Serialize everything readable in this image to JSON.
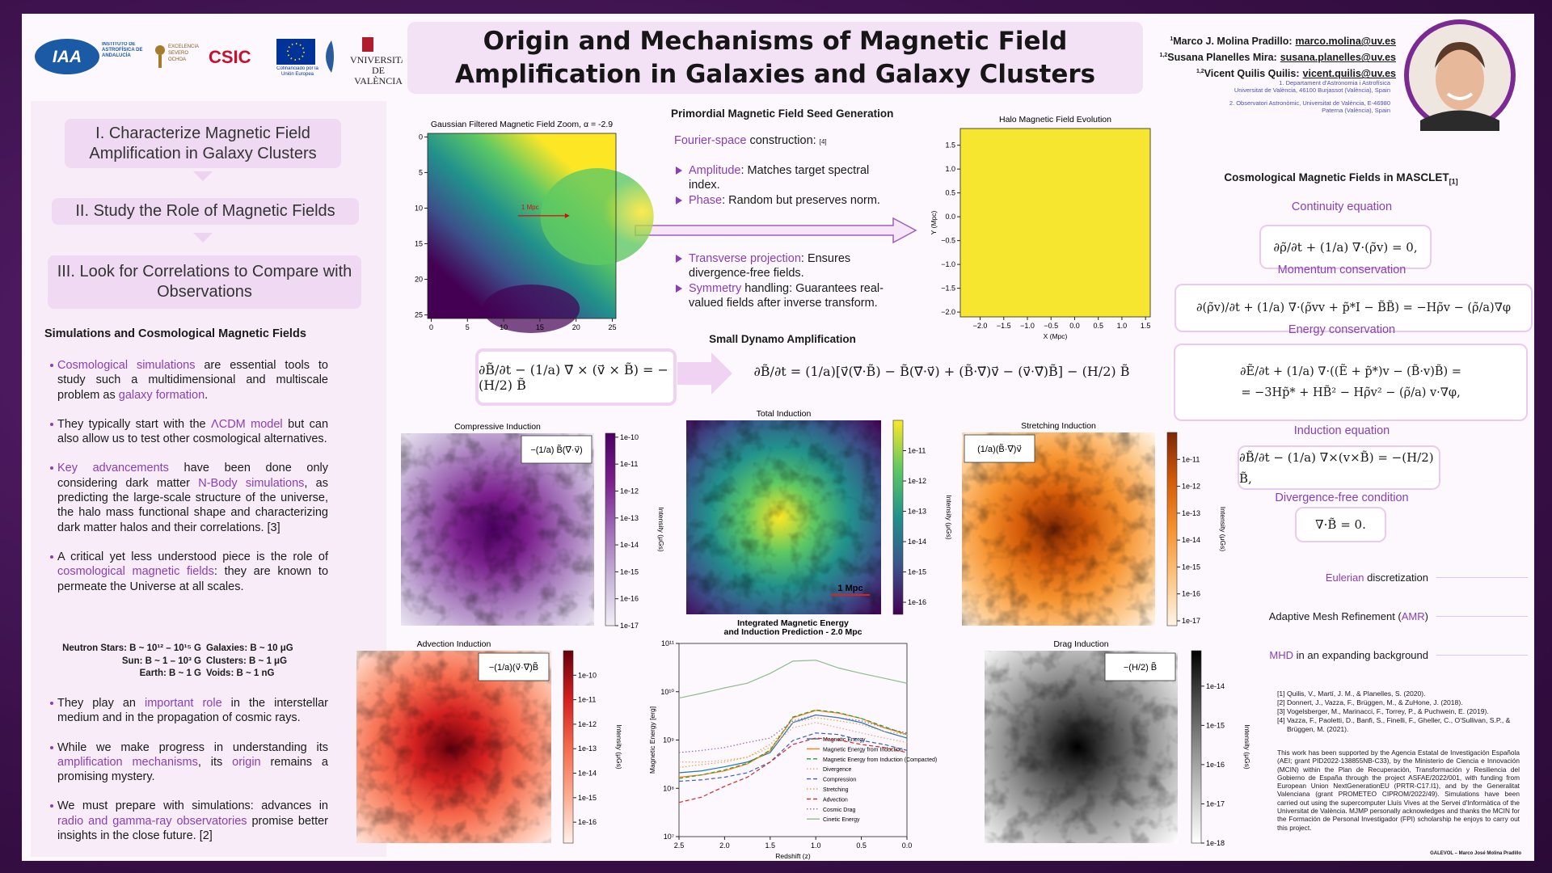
{
  "header": {
    "title": "Origin and Mechanisms of Magnetic Field Amplification in Galaxies and Galaxy Clusters",
    "logos": [
      "IAA",
      "INSTITUTO DE ASTROFÍSICA DE ANDALUCÍA",
      "EXCELENCIA SEVERO OCHOA",
      "CSIC",
      "Cofinanciado por la Unión Europea",
      "VNIVERSITAT DE VALÈNCIA"
    ],
    "authors": [
      {
        "marks": "1",
        "name": "Marco J. Molina Pradillo:",
        "email": "marco.molina@uv.es"
      },
      {
        "marks": "1,2",
        "name": "Susana Planelles Mira:",
        "email": "susana.planelles@uv.es"
      },
      {
        "marks": "1,2",
        "name": "Vicent Quilis Quilis:",
        "email": "vicent.quilis@uv.es"
      }
    ],
    "affiliations": [
      "1. Departament d'Astronomia i Astrofísica\nUniversitat de València, 46100 Burjassot (València), Spain",
      "2. Observatori Astronòmic, Universitat de València, E-46980\nPaterna (València), Spain"
    ]
  },
  "left": {
    "steps": [
      "I. Characterize Magnetic Field Amplification in Galaxy Clusters",
      "II. Study the Role of Magnetic Fields",
      "III. Look for Correlations to Compare with Observations"
    ],
    "section_title": "Simulations and Cosmological Magnetic Fields",
    "bullets": [
      [
        {
          "text": "Cosmological simulations",
          "color": "#8b3fb5"
        },
        " are essential tools to study such a multidimensional and multiscale problem as ",
        {
          "text": "galaxy formation",
          "color": "#8b3fb5"
        },
        "."
      ],
      [
        "They typically start with the ",
        {
          "text": "ΛCDM model",
          "color": "#8b3fb5"
        },
        " but can also allow us to test other cosmological alternatives."
      ],
      [
        {
          "text": "Key advancements",
          "color": "#8b3fb5"
        },
        " have been done only considering dark matter ",
        {
          "text": "N-Body simulations",
          "color": "#8b3fb5"
        },
        ", as predicting the large-scale structure of the universe, the halo mass functional shape and characterizing dark matter halos and their correlations. [3]"
      ],
      [
        "A critical yet less understood piece is the role of ",
        {
          "text": "cosmological magnetic fields",
          "color": "#8b3fb5"
        },
        ": they are known to permeate the Universe at all scales."
      ]
    ],
    "field_scales": [
      [
        "Neutron Stars: B ~ 10¹² – 10¹⁵ G",
        "Galaxies: B ~ 10 μG"
      ],
      [
        "Sun: B ~ 1 – 10³ G",
        "Clusters: B ~ 1 μG"
      ],
      [
        "Earth: B ~ 1 G",
        "Voids: B ~ 1 nG"
      ]
    ],
    "bullets_after": [
      [
        "They play an ",
        {
          "text": "important role",
          "color": "#8b3fb5"
        },
        " in the interstellar medium and in the propagation of cosmic rays."
      ],
      [
        "While we make progress in understanding its ",
        {
          "text": "amplification mechanisms",
          "color": "#8b3fb5"
        },
        ", its ",
        {
          "text": "origin",
          "color": "#8b3fb5"
        },
        " remains a promising mystery."
      ],
      [
        "We must prepare with simulations: advances in ",
        {
          "text": "radio and gamma-ray observatories",
          "color": "#8b3fb5"
        },
        " promise better insights in the close future. [2]"
      ]
    ]
  },
  "seed": {
    "title": "Primordial Magnetic Field Seed Generation",
    "intro": [
      {
        "text": "Fourier-space",
        "color": "#8b3fb5"
      },
      " construction: ",
      "[4]"
    ],
    "group1": [
      [
        {
          "text": "Amplitude",
          "color": "#8b3fb5"
        },
        ": Matches target spectral index."
      ],
      [
        {
          "text": "Phase",
          "color": "#8b3fb5"
        },
        ": Random but preserves norm."
      ]
    ],
    "group2": [
      [
        {
          "text": "Transverse projection",
          "color": "#8b3fb5"
        },
        ": Ensures divergence-free fields."
      ],
      [
        {
          "text": "Symmetry",
          "color": "#8b3fb5"
        },
        " handling: Guarantees real-valued fields after inverse transform."
      ]
    ]
  },
  "dynamo": {
    "title": "Small Dynamo Amplification",
    "equation_short": "∂B̃/∂t − (1/a) ∇⃗ × (v⃗ × B̃) = −(H/2) B̃",
    "equation_full": "∂B̃/∂t = (1/a)[v⃗(∇⃗·B̃) − B̃(∇⃗·v⃗) + (B̃·∇⃗)v⃗ − (v⃗·∇⃗)B̃] − (H/2) B̃"
  },
  "masclet": {
    "title": "Cosmological Magnetic Fields in MASCLET",
    "title_ref": "[1]",
    "equations": [
      {
        "label": "Continuity equation",
        "lines": [
          "∂ρ̃/∂t + (1/a) ∇·(ρ̃v) = 0,"
        ]
      },
      {
        "label": "Momentum conservation",
        "lines": [
          "∂(ρ̃v)/∂t + (1/a) ∇·(ρ̃vv + p̃*I − B̃B̃) = −Hρ̃v − (ρ̃/a)∇φ"
        ]
      },
      {
        "label": "Energy conservation",
        "lines": [
          "∂Ẽ/∂t + (1/a) ∇·((Ẽ + p̃*)v − (B̃·v)B̃) =",
          "= −3Hp̃* + HB̃² − Hρ̃v² − (ρ̃/a) v·∇φ,"
        ]
      },
      {
        "label": "Induction equation",
        "lines": [
          "∂B̃/∂t − (1/a) ∇×(v×B̃) = −(H/2) B̃,"
        ]
      },
      {
        "label": "Divergence-free condition",
        "lines": [
          "∇·B̃ = 0."
        ]
      }
    ],
    "methods": [
      [
        {
          "text": "Eulerian",
          "color": "#8b3fb5"
        },
        " discretization"
      ],
      [
        "Adaptive Mesh Refinement (",
        {
          "text": "AMR",
          "color": "#8b3fb5"
        },
        ")"
      ],
      [
        {
          "text": "MHD",
          "color": "#8b3fb5"
        },
        " in an expanding background"
      ]
    ]
  },
  "references": [
    "[1] Quilis, V., Martí, J. M., & Planelles, S. (2020).",
    "[2] Donnert, J., Vazza, F., Brüggen, M., & ZuHone, J. (2018).",
    "[3] Vogelsberger, M., Marinacci, F., Torrey, P., & Puchwein, E. (2019).",
    "[4] Vazza, F., Paoletti, D., Banfi, S., Finelli, F., Gheller, C., O'Sullivan, S.P., & Brüggen, M. (2021)."
  ],
  "acknowledgment": "This work has been supported by the Agencia Estatal de Investigación Española (AEI; grant PID2022-138855NB-C33), by the Ministerio de Ciencia e Innovación (MCIN) within the Plan de Recuperación, Transformación y Resiliencia del Gobierno de España through the project ASFAE/2022/001, with funding from European Union NextGenerationEU (PRTR-C17.I1), and by the Generalitat Valenciana (grant PROMETEO CIPROM/2022/49). Simulations have been carried out using the supercomputer Lluís Vives at the Servei d'Informàtica of the Universitat de València. MJMP personally acknowledges and thanks the MCIN for the Formación de Personal Investigador (FPI) scholarship he enjoys to carry out this project.",
  "footer": "GALEVOL – Marco José Molina Pradillo",
  "chart_data": [
    {
      "type": "heatmap",
      "title": "Gaussian Filtered Magnetic Field Zoom, α = -2.9",
      "colors": [
        "#440154",
        "#3b528b",
        "#21918c",
        "#5ec962",
        "#fde725"
      ],
      "annotation": "1 Mpc",
      "xlim": [
        -0.5,
        25.5
      ],
      "ylim": [
        25.5,
        -0.5
      ],
      "xticks": [
        0,
        5,
        10,
        15,
        20,
        25
      ],
      "yticks": [
        0,
        5,
        10,
        15,
        20,
        25
      ]
    },
    {
      "type": "heatmap",
      "title": "Halo Magnetic Field Evolution",
      "xlabel": "X (Mpc)",
      "ylabel": "Y (Mpc)",
      "color": "#f7e630",
      "xlim": [
        -2.42,
        1.6
      ],
      "ylim": [
        -2.1,
        1.85
      ],
      "xticks": [
        {
          "value": -2.0,
          "label": "−2.0"
        },
        {
          "value": -1.5,
          "label": "−1.5"
        },
        {
          "value": -1.0,
          "label": "−1.0"
        },
        {
          "value": -0.5,
          "label": "−0.5"
        },
        {
          "value": 0.0,
          "label": "0.0"
        },
        0.5,
        {
          "value": 1.0,
          "label": "1.0"
        },
        1.5
      ],
      "yticks": [
        {
          "value": -2.0,
          "label": "−2.0"
        },
        {
          "value": -1.5,
          "label": "−1.5"
        },
        {
          "value": -1.0,
          "label": "−1.0"
        },
        {
          "value": -0.5,
          "label": "−0.5"
        },
        {
          "value": 0.0,
          "label": "0.0"
        },
        0.5,
        {
          "value": 1.0,
          "label": "1.0"
        },
        1.5
      ]
    },
    {
      "type": "line",
      "title": [
        "Integrated Magnetic Energy",
        "and Induction Prediction - 2.0 Mpc"
      ],
      "xlabel": "Redshift (z)",
      "ylabel": "Magnetic Energy [erg]",
      "log_y": true,
      "x": [
        2.5,
        2.25,
        2.0,
        1.75,
        1.5,
        1.25,
        1.0,
        0.75,
        0.5,
        0.25,
        0.0
      ],
      "xlim": [
        2.5,
        0.0
      ],
      "ylim": [
        10000000.0,
        100000000000.0
      ],
      "xticks": [
        2.5,
        {
          "value": 2.0,
          "label": "2.0"
        },
        1.5,
        {
          "value": 1.0,
          "label": "1.0"
        },
        0.5,
        {
          "value": 0.0,
          "label": "0.0"
        }
      ],
      "yticks": [
        {
          "value": 10000000.0,
          "label": "10⁷"
        },
        {
          "value": 100000000.0,
          "label": "10⁸"
        },
        {
          "value": 1000000000.0,
          "label": "10⁹"
        },
        {
          "value": 10000000000.0,
          "label": "10¹⁰"
        },
        {
          "value": 100000000000.0,
          "label": "10¹¹"
        }
      ],
      "series": [
        {
          "name": "Magnetic Energy",
          "color": "#1f77b4",
          "dash": "solid",
          "values": [
            210000000.0,
            230000000.0,
            280000000.0,
            350000000.0,
            550000000.0,
            2300000000.0,
            3300000000.0,
            2900000000.0,
            2300000000.0,
            1500000000.0,
            1100000000.0
          ]
        },
        {
          "name": "Magnetic Energy from Induction",
          "color": "#ff7f0e",
          "dash": "solid",
          "values": [
            170000000.0,
            190000000.0,
            230000000.0,
            320000000.0,
            600000000.0,
            2900000000.0,
            4100000000.0,
            3600000000.0,
            2800000000.0,
            1800000000.0,
            1300000000.0
          ]
        },
        {
          "name": "Magnetic Energy from Induction (Compacted)",
          "color": "#2ca02c",
          "dash": "dashed",
          "values": [
            160000000.0,
            190000000.0,
            240000000.0,
            330000000.0,
            620000000.0,
            3000000000.0,
            4200000000.0,
            3700000000.0,
            2800000000.0,
            1900000000.0,
            1300000000.0
          ]
        },
        {
          "name": "Divergence",
          "color": "#f2a17a",
          "dash": "dotted",
          "values": [
            350000000.0,
            350000000.0,
            380000000.0,
            440000000.0,
            700000000.0,
            1800000000.0,
            2300000000.0,
            1800000000.0,
            1400000000.0,
            1100000000.0,
            890000000.0
          ]
        },
        {
          "name": "Compression",
          "color": "#3b5fc0",
          "dash": "dashed",
          "values": [
            140000000.0,
            150000000.0,
            170000000.0,
            210000000.0,
            350000000.0,
            980000000.0,
            1400000000.0,
            1300000000.0,
            980000000.0,
            810000000.0,
            610000000.0
          ]
        },
        {
          "name": "Stretching",
          "color": "#e8a33d",
          "dash": "dotted",
          "values": [
            270000000.0,
            310000000.0,
            350000000.0,
            440000000.0,
            810000000.0,
            2300000000.0,
            2900000000.0,
            2500000000.0,
            2100000000.0,
            1500000000.0,
            1300000000.0
          ]
        },
        {
          "name": "Advection",
          "color": "#d62728",
          "dash": "dashed",
          "values": [
            51000000.0,
            66000000.0,
            110000000.0,
            170000000.0,
            350000000.0,
            810000000.0,
            1100000000.0,
            1000000000.0,
            810000000.0,
            700000000.0,
            550000000.0
          ]
        },
        {
          "name": "Cosmic Drag",
          "color": "#9467bd",
          "dash": "dotted",
          "values": [
            550000000.0,
            610000000.0,
            700000000.0,
            890000000.0,
            1100000000.0,
            2500000000.0,
            3300000000.0,
            2900000000.0,
            2500000000.0,
            1800000000.0,
            1400000000.0
          ]
        },
        {
          "name": "Cinetic Energy",
          "color": "#8fbc8f",
          "dash": "solid",
          "values": [
            7400000000.0,
            9300000000.0,
            12000000000.0,
            15000000000.0,
            24000000000.0,
            43000000000.0,
            45000000000.0,
            31000000000.0,
            24000000000.0,
            19000000000.0,
            15000000000.0
          ]
        }
      ]
    },
    {
      "type": "image",
      "title": "Compressive Induction",
      "formula": "−(1/a) B̃(∇⃗·v⃗)",
      "cbar_label": "Intensity (μGs)",
      "cmap": [
        "#f1eef6",
        "#c7b3d8",
        "#a06cb6",
        "#7a1f8c",
        "#4a0060"
      ],
      "cbar_lim": [
        1e-17,
        1.4e-10
      ],
      "cbar_ticks": [
        1e-10,
        1e-11,
        1e-12,
        1e-13,
        1e-14,
        1e-15,
        1e-16,
        1e-17
      ]
    },
    {
      "type": "image",
      "title": "Total Induction",
      "scale": "1 Mpc",
      "cbar_label": "Intensity (μGs)",
      "cmap": [
        "#440154",
        "#3b528b",
        "#21918c",
        "#5ec962",
        "#fde725"
      ],
      "cbar_lim": [
        4e-17,
        1e-10
      ],
      "cbar_ticks": [
        1e-11,
        1e-12,
        1e-13,
        1e-14,
        1e-15,
        1e-16
      ]
    },
    {
      "type": "image",
      "title": "Stretching Induction",
      "formula": "(1/a)(B̃·∇⃗)v⃗",
      "cbar_label": "Intensity (μGs)",
      "cmap": [
        "#fff5e6",
        "#fdc583",
        "#f6922e",
        "#d45b08",
        "#7f2704"
      ],
      "cbar_lim": [
        6.6e-18,
        1e-10
      ],
      "cbar_ticks": [
        1e-11,
        1e-12,
        1e-13,
        1e-14,
        1e-15,
        1e-16,
        1e-17
      ]
    },
    {
      "type": "image",
      "title": "Advection Induction",
      "formula": "−(1/a)(v⃗·∇⃗)B̃",
      "cbar_label": "Intensity (μGs)",
      "cmap": [
        "#fff0eb",
        "#fcab8f",
        "#f6694c",
        "#d32020",
        "#67000d"
      ],
      "cbar_lim": [
        1.4e-17,
        1e-09
      ],
      "cbar_ticks": [
        1e-10,
        1e-11,
        1e-12,
        1e-13,
        1e-14,
        1e-15,
        1e-16
      ]
    },
    {
      "type": "image",
      "title": "Drag Induction",
      "formula": "−(H/2) B̃",
      "cbar_label": "Intensity (μGs)",
      "cmap": [
        "#ffffff",
        "#c8c8c8",
        "#8c8c8c",
        "#4a4a4a",
        "#000000"
      ],
      "cbar_lim": [
        1e-18,
        8e-14
      ],
      "cbar_ticks": [
        1e-14,
        1e-15,
        1e-16,
        1e-17,
        1e-18
      ]
    }
  ]
}
